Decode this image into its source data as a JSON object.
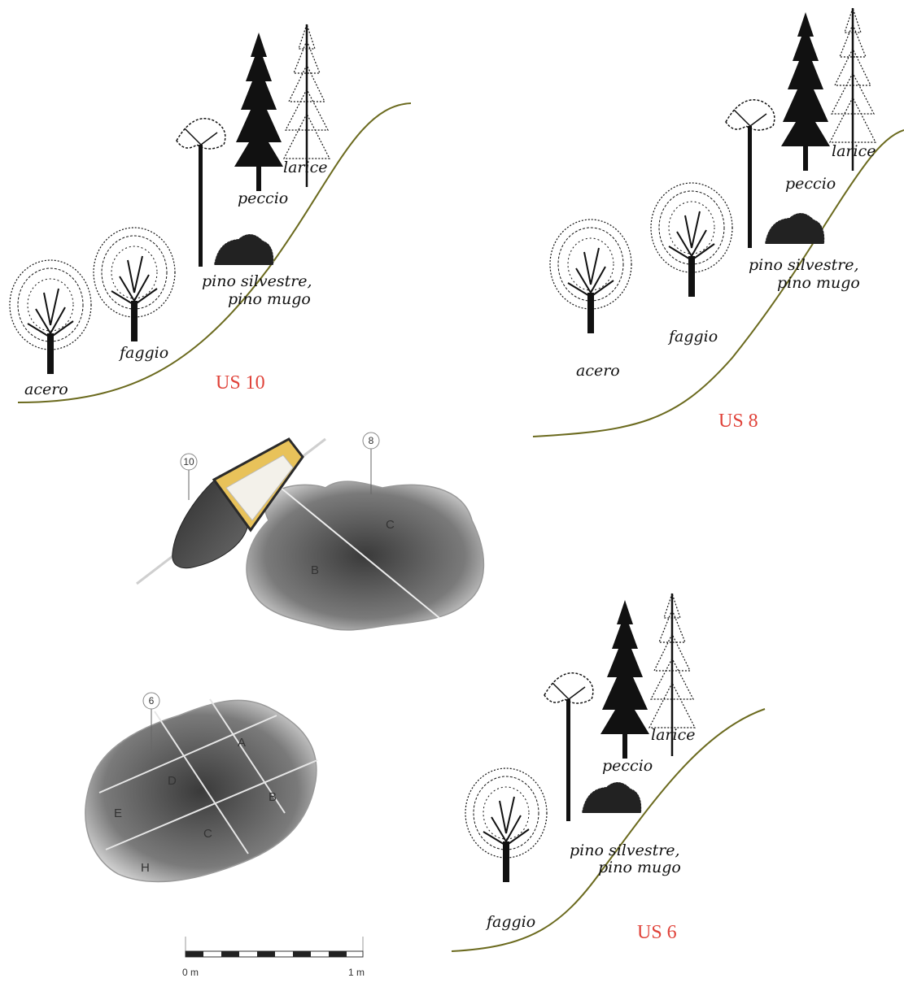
{
  "colors": {
    "us_label": "#e0433a",
    "slope": "#6b6a1e",
    "tree": "#111111",
    "excavation_fill_dark": "#4a4a4a",
    "excavation_fill_light": "#d8d8d8",
    "us10_top": "#e8c25a"
  },
  "panels": {
    "us10": {
      "title": "US 10",
      "labels": {
        "acero": "acero",
        "faggio": "faggio",
        "pino1": "pino silvestre,",
        "pino2": "pino mugo",
        "peccio": "peccio",
        "larice": "larice"
      }
    },
    "us8": {
      "title": "US 8",
      "labels": {
        "acero": "acero",
        "faggio": "faggio",
        "pino1": "pino silvestre,",
        "pino2": "pino mugo",
        "peccio": "peccio",
        "larice": "larice"
      }
    },
    "us6": {
      "title": "US 6",
      "labels": {
        "faggio": "faggio",
        "pino1": "pino silvestre,",
        "pino2": "pino mugo",
        "peccio": "peccio",
        "larice": "larice"
      }
    }
  },
  "excavation_top": {
    "tag_10": "10",
    "tag_8": "8",
    "sectors": [
      "B",
      "C"
    ]
  },
  "excavation_bottom": {
    "tag_6": "6",
    "sectors": [
      "A",
      "B",
      "C",
      "D",
      "E",
      "H"
    ]
  },
  "scale_bar": {
    "start": "0 m",
    "end": "1 m"
  }
}
